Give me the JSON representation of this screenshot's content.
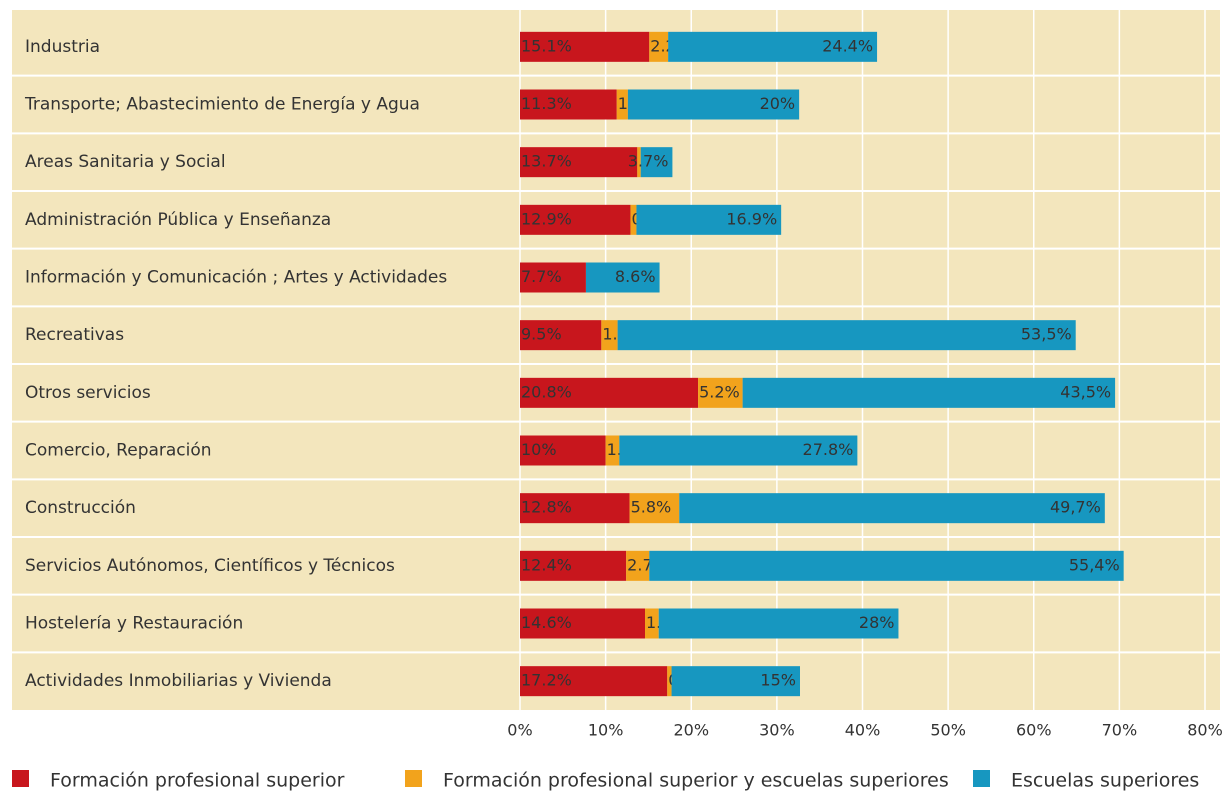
{
  "chart_data": {
    "type": "stacked_bar_horizontal",
    "categories": [
      "Industria",
      "Transporte; Abastecimiento de Energía y Agua",
      "Areas Sanitaria y Social",
      "Administración Pública y Enseñanza",
      "Información y Comunicación ; Artes y Actividades",
      "Recreativas",
      "Otros servicios",
      "Comercio, Reparación",
      "Construcción",
      "Servicios Autónomos, Científicos y Técnicos",
      "Hostelería y Restauración",
      "Actividades Inmobiliarias y Vivienda"
    ],
    "series": [
      {
        "name": "Formación profesional superior",
        "color": "#c8161d",
        "values": [
          15.1,
          11.3,
          13.7,
          12.9,
          7.7,
          9.5,
          20.8,
          10,
          12.8,
          12.4,
          14.6,
          17.2
        ],
        "value_labels": [
          "15.1%",
          "11.3%",
          "13.7%",
          "12.9%",
          "7.7%",
          "9.5%",
          "20.8%",
          "10%",
          "12.8%",
          "12.4%",
          "14.6%",
          "17.2%"
        ]
      },
      {
        "name": "Formación profesional superior y escuelas superiores",
        "color": "#f2a31c",
        "values": [
          2.2,
          1.3,
          0.4,
          0.7,
          0,
          1.9,
          5.2,
          1.6,
          5.8,
          2.7,
          1.6,
          0.5
        ],
        "value_labels": [
          "2.2%",
          "1.3%",
          null,
          "0.7%",
          null,
          "1.9%",
          "5.2%",
          "1.6%",
          "5.8%",
          "2.7%",
          "1.6%",
          "0.5%"
        ]
      },
      {
        "name": "Escuelas superiores",
        "color": "#1797c0",
        "values": [
          24.4,
          20,
          3.7,
          16.9,
          8.6,
          53.5,
          43.5,
          27.8,
          49.7,
          55.4,
          28,
          15
        ],
        "value_labels": [
          "24.4%",
          "20%",
          "3.7%",
          "16.9%",
          "8.6%",
          "53,5%",
          "43,5%",
          "27.8%",
          "49,7%",
          "55,4%",
          "28%",
          "15%"
        ]
      }
    ],
    "xlim": [
      0,
      80
    ],
    "xticks": [
      {
        "value": 0,
        "label": "0%"
      },
      {
        "value": 10,
        "label": "10%"
      },
      {
        "value": 20,
        "label": "20%"
      },
      {
        "value": 30,
        "label": "30%"
      },
      {
        "value": 40,
        "label": "40%"
      },
      {
        "value": 50,
        "label": "50%"
      },
      {
        "value": 60,
        "label": "60%"
      },
      {
        "value": 70,
        "label": "70%"
      },
      {
        "value": 80,
        "label": "80%"
      }
    ],
    "grid": true,
    "legend": "bottom"
  }
}
